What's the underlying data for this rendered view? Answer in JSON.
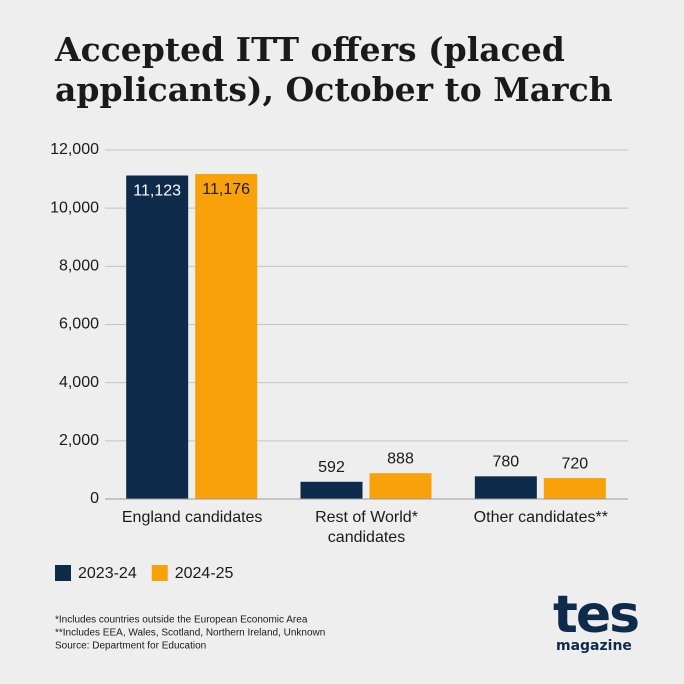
{
  "chart_data": {
    "type": "bar",
    "title_lines": [
      "Accepted ITT offers (placed",
      "applicants), October to March"
    ],
    "categories": [
      "England candidates",
      "Rest of World* candidates",
      "Other candidates**"
    ],
    "series": [
      {
        "name": "2023-24",
        "color": "#0f2b4c",
        "values": [
          11123,
          592,
          780
        ],
        "value_labels": [
          "11,123",
          "592",
          "780"
        ]
      },
      {
        "name": "2024-25",
        "color": "#f9a10b",
        "values": [
          11176,
          888,
          720
        ],
        "value_labels": [
          "11,176",
          "888",
          "720"
        ]
      }
    ],
    "ylim": [
      0,
      12000
    ],
    "yticks": [
      0,
      {
        "value": 2000,
        "label": "2,000"
      },
      {
        "value": 4000,
        "label": "4,000"
      },
      {
        "value": 6000,
        "label": "6,000"
      },
      {
        "value": 8000,
        "label": "8,000"
      },
      {
        "value": 10000,
        "label": "10,000"
      },
      {
        "value": 12000,
        "label": "12,000"
      }
    ],
    "grid": true,
    "footnotes": [
      "*Includes countries outside the European Economic Area",
      "**Includes EEA, Wales, Scotland, Northern Ireland, Unknown",
      "Source: Department for Education"
    ],
    "logo": {
      "name": "tes",
      "sub": "magazine"
    }
  }
}
